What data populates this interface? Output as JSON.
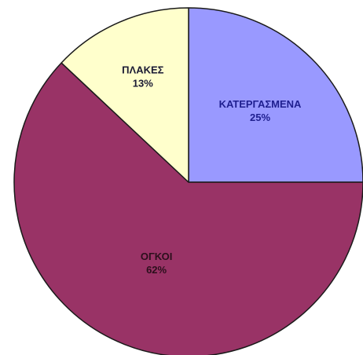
{
  "chart_data": {
    "type": "pie",
    "title": "",
    "slices": [
      {
        "label": "ΚΑΤΕΡΓΑΣΜΕΝΑ",
        "value": 25,
        "value_label": "25%",
        "color": "#9999ff",
        "label_color": "#1f1f8f"
      },
      {
        "label": "ΟΓΚΟΙ",
        "value": 62,
        "value_label": "62%",
        "color": "#993366",
        "label_color": "#2b0f1c"
      },
      {
        "label": "ΠΛΑΚΕΣ",
        "value": 13,
        "value_label": "13%",
        "color": "#ffffcc",
        "label_color": "#1a1a33"
      }
    ],
    "legend": false,
    "start_angle": "12 o'clock",
    "direction": "clockwise"
  }
}
